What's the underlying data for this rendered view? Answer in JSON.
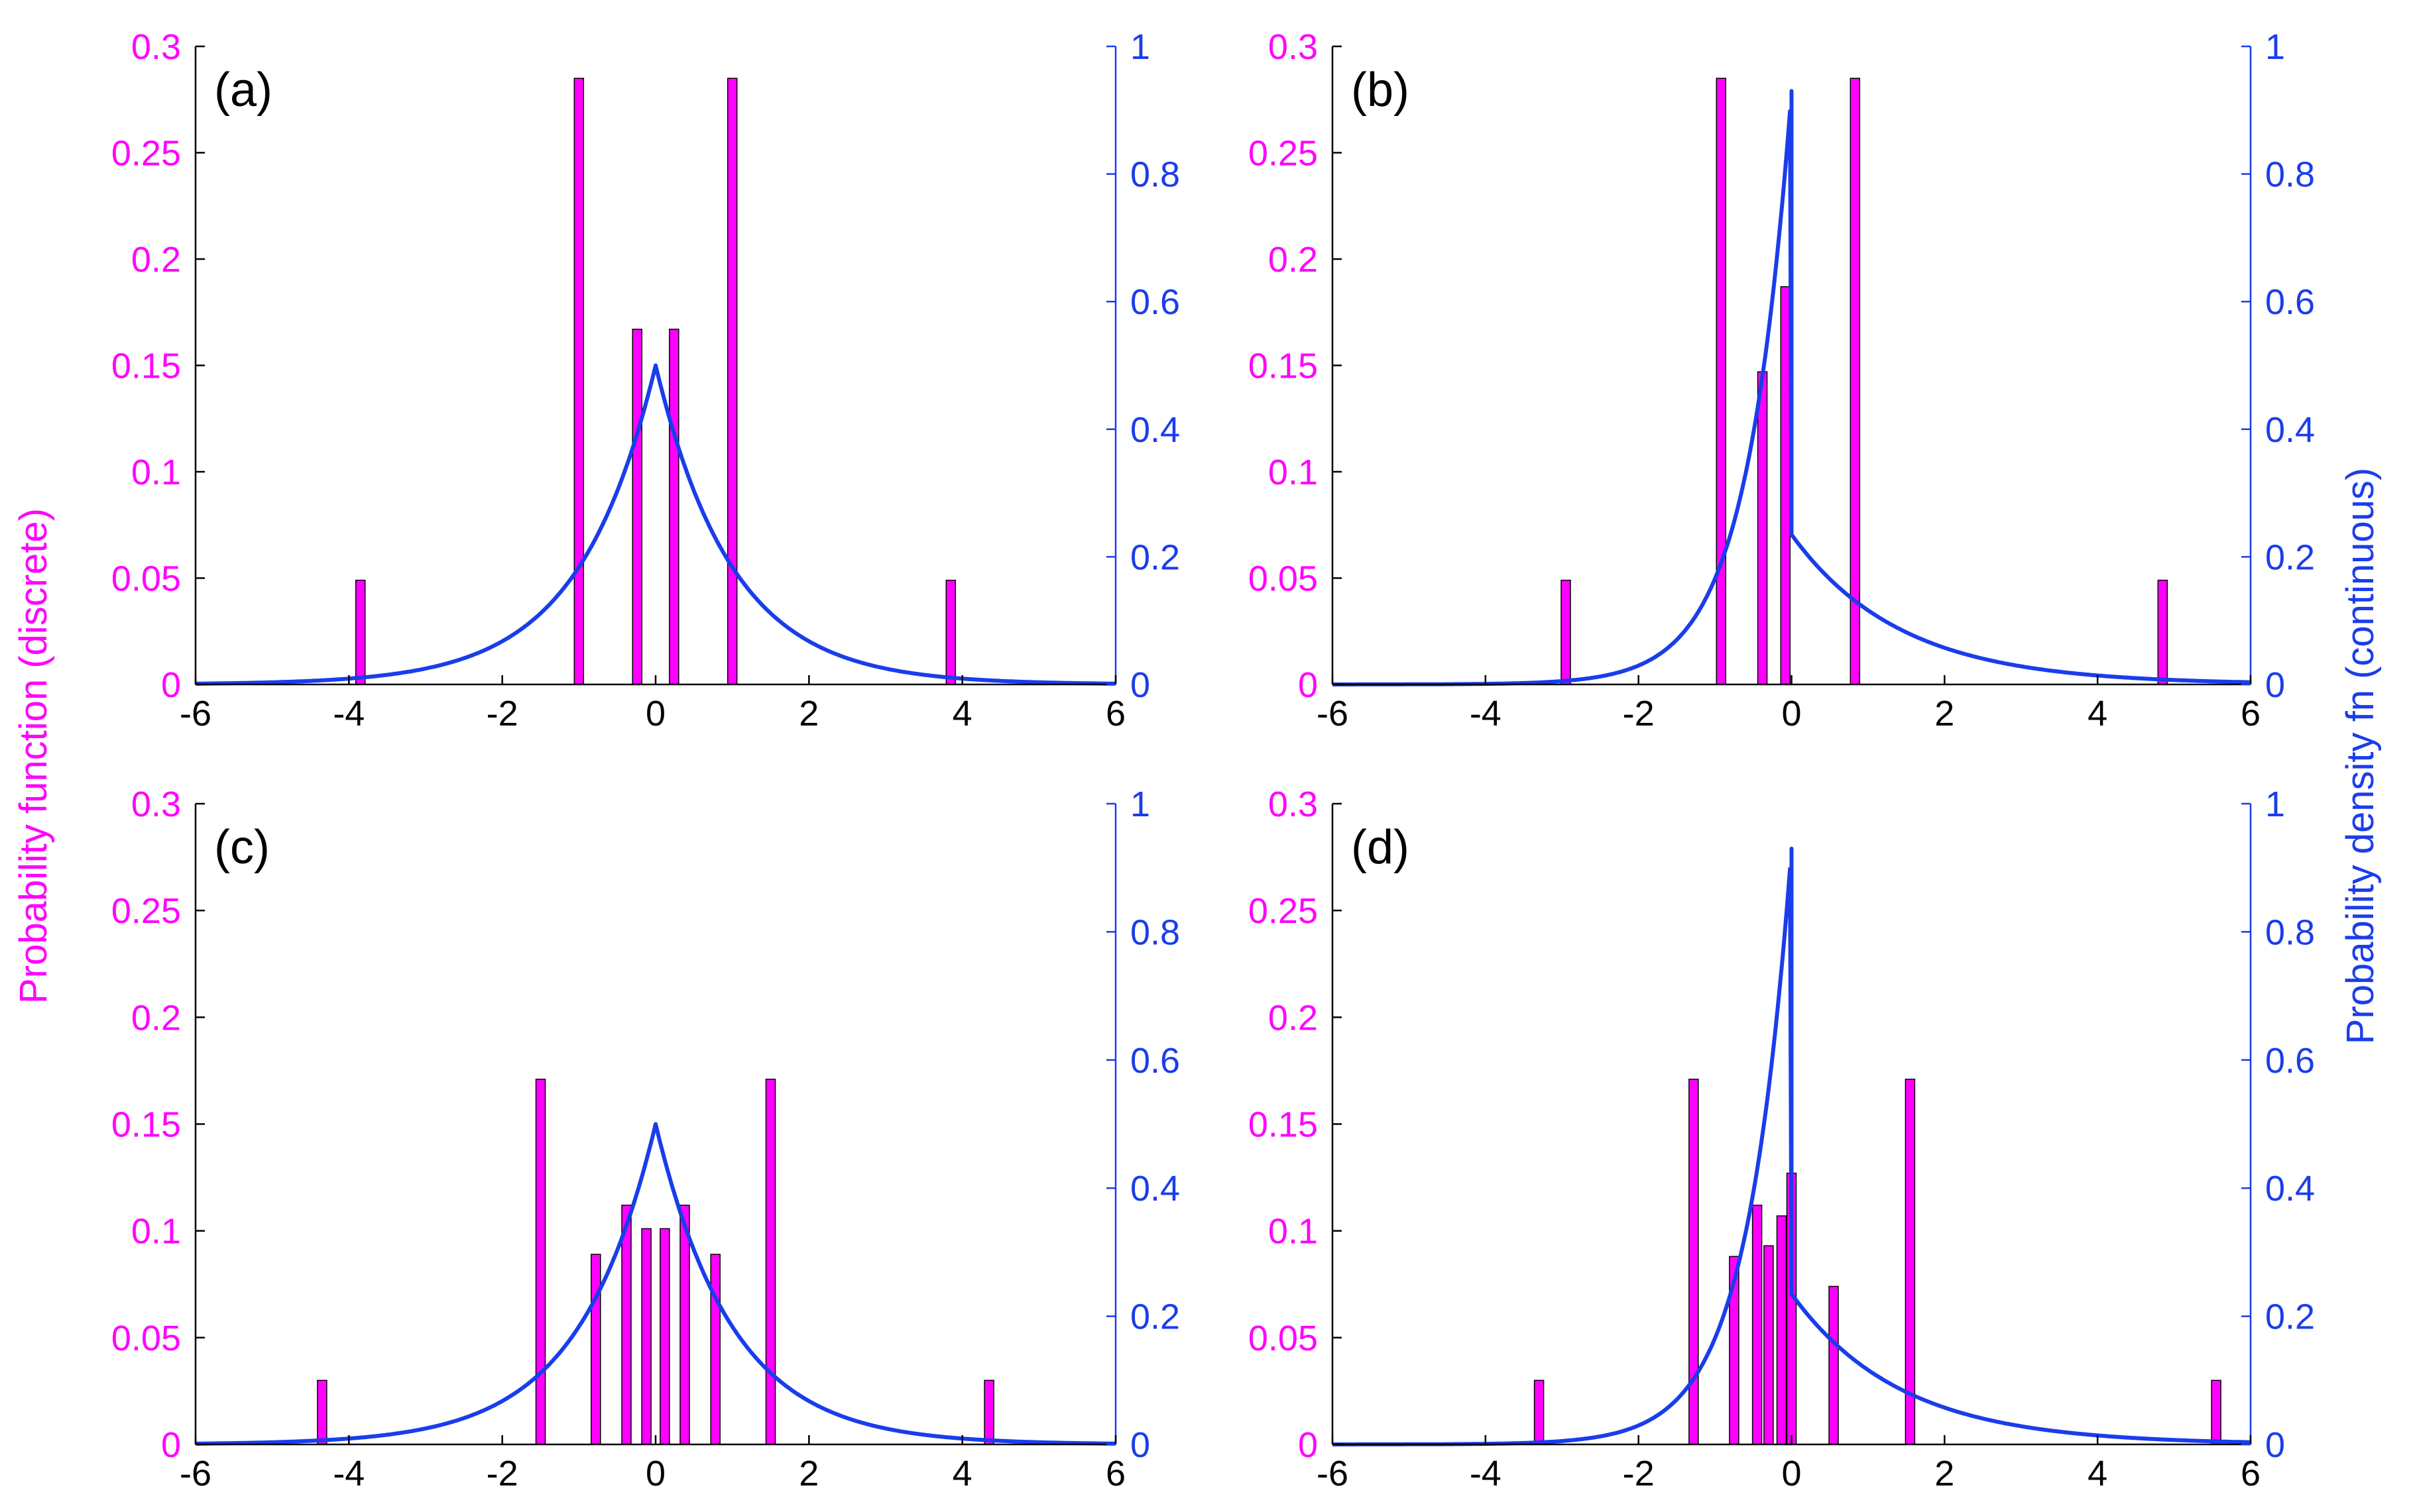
{
  "colors": {
    "discrete": "#FF00FF",
    "continuous": "#1A3DEB",
    "axis": "#000000",
    "bar_edge": "#000000"
  },
  "axes_labels": {
    "left": "Probability function (discrete)",
    "right": "Probability density fn (continuous)"
  },
  "chart_data": [
    {
      "type": "bar+line",
      "panel": "(a)",
      "xlim": [
        -6,
        6
      ],
      "xticks": [
        "-6",
        "-4",
        "-2",
        "0",
        "2",
        "4",
        "6"
      ],
      "left_ylim": [
        0,
        0.3
      ],
      "left_yticks": [
        "0",
        "0.05",
        "0.1",
        "0.15",
        "0.2",
        "0.25",
        "0.3"
      ],
      "right_ylim": [
        0,
        1
      ],
      "right_yticks": [
        "0",
        "0.2",
        "0.4",
        "0.6",
        "0.8",
        "1"
      ],
      "discrete_series": {
        "name": "Probability function (discrete)",
        "x": [
          -3.85,
          -1.0,
          -0.24,
          0.24,
          1.0,
          3.85
        ],
        "values": [
          0.049,
          0.285,
          0.167,
          0.167,
          0.285,
          0.049
        ]
      },
      "continuous_series": {
        "name": "Probability density fn (continuous)",
        "kind": "laplace",
        "left_scale": 1.0,
        "right_scale": 1.0,
        "left_peak": 0.5,
        "right_peak": 0.5
      }
    },
    {
      "type": "bar+line",
      "panel": "(b)",
      "xlim": [
        -6,
        6
      ],
      "xticks": [
        "-6",
        "-4",
        "-2",
        "0",
        "2",
        "4",
        "6"
      ],
      "left_ylim": [
        0,
        0.3
      ],
      "left_yticks": [
        "0",
        "0.05",
        "0.1",
        "0.15",
        "0.2",
        "0.25",
        "0.3"
      ],
      "right_ylim": [
        0,
        1
      ],
      "right_yticks": [
        "0",
        "0.2",
        "0.4",
        "0.6",
        "0.8",
        "1"
      ],
      "discrete_series": {
        "name": "Probability function (discrete)",
        "x": [
          -2.95,
          -0.92,
          -0.38,
          -0.08,
          0.83,
          4.85
        ],
        "values": [
          0.049,
          0.285,
          0.147,
          0.187,
          0.285,
          0.049
        ]
      },
      "continuous_series": {
        "name": "Probability density fn (continuous)",
        "kind": "asymmetric-laplace",
        "left_scale": 0.58,
        "right_scale": 1.42,
        "left_peak": 0.93,
        "right_peak": 0.235
      }
    },
    {
      "type": "bar+line",
      "panel": "(c)",
      "xlim": [
        -6,
        6
      ],
      "xticks": [
        "-6",
        "-4",
        "-2",
        "0",
        "2",
        "4",
        "6"
      ],
      "left_ylim": [
        0,
        0.3
      ],
      "left_yticks": [
        "0",
        "0.05",
        "0.1",
        "0.15",
        "0.2",
        "0.25",
        "0.3"
      ],
      "right_ylim": [
        0,
        1
      ],
      "right_yticks": [
        "0",
        "0.2",
        "0.4",
        "0.6",
        "0.8",
        "1"
      ],
      "discrete_series": {
        "name": "Probability function (discrete)",
        "x": [
          -4.35,
          -1.5,
          -0.78,
          -0.38,
          -0.12,
          0.12,
          0.38,
          0.78,
          1.5,
          4.35
        ],
        "values": [
          0.03,
          0.171,
          0.089,
          0.112,
          0.101,
          0.101,
          0.112,
          0.089,
          0.171,
          0.03
        ]
      },
      "continuous_series": {
        "name": "Probability density fn (continuous)",
        "kind": "laplace",
        "left_scale": 1.0,
        "right_scale": 1.0,
        "left_peak": 0.5,
        "right_peak": 0.5
      }
    },
    {
      "type": "bar+line",
      "panel": "(d)",
      "xlim": [
        -6,
        6
      ],
      "xticks": [
        "-6",
        "-4",
        "-2",
        "0",
        "2",
        "4",
        "6"
      ],
      "left_ylim": [
        0,
        0.3
      ],
      "left_yticks": [
        "0",
        "0.05",
        "0.1",
        "0.15",
        "0.2",
        "0.25",
        "0.3"
      ],
      "right_ylim": [
        0,
        1
      ],
      "right_yticks": [
        "0",
        "0.2",
        "0.4",
        "0.6",
        "0.8",
        "1"
      ],
      "discrete_series": {
        "name": "Probability function (discrete)",
        "x": [
          -3.3,
          -1.28,
          -0.75,
          -0.45,
          -0.3,
          -0.13,
          0.0,
          0.55,
          1.55,
          5.55
        ],
        "values": [
          0.03,
          0.171,
          0.088,
          0.112,
          0.093,
          0.107,
          0.127,
          0.074,
          0.171,
          0.03
        ]
      },
      "continuous_series": {
        "name": "Probability density fn (continuous)",
        "kind": "asymmetric-laplace",
        "left_scale": 0.58,
        "right_scale": 1.42,
        "left_peak": 0.93,
        "right_peak": 0.235
      }
    }
  ]
}
